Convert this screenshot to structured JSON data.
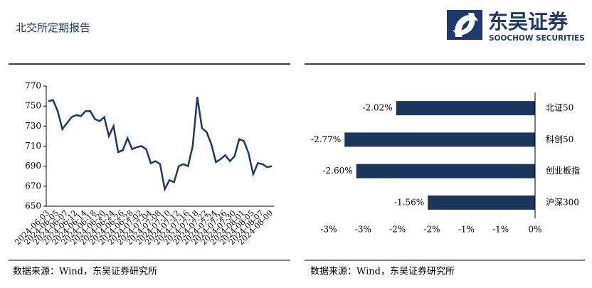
{
  "header": {
    "title": "北交所定期报告",
    "logo_name": "东吴证券",
    "logo_sub": "SOOCHOW SECURITIES"
  },
  "chart_data": [
    {
      "type": "line",
      "color": "#1b3a6b",
      "x": [
        "2024-06-03",
        null,
        "2024-06-05",
        null,
        "2024-06-07",
        null,
        "2024-06-12",
        null,
        "2024-06-14",
        null,
        "2024-06-18",
        null,
        "2024-06-20",
        null,
        "2024-06-24",
        null,
        "2024-06-26",
        null,
        "2024-06-28",
        null,
        "2024-07-02",
        null,
        "2024-07-04",
        null,
        "2024-07-08",
        null,
        "2024-07-10",
        null,
        "2024-07-12",
        null,
        "2024-07-16",
        null,
        "2024-07-18",
        null,
        "2024-07-22",
        null,
        "2024-07-24",
        null,
        "2024-07-26",
        null,
        "2024-07-30",
        null,
        "2024-08-01",
        null,
        "2024-08-05",
        null,
        "2024-08-07",
        null,
        "2024-08-09"
      ],
      "values": [
        755,
        756,
        745,
        727,
        733,
        739,
        741,
        740,
        745,
        745,
        737,
        735,
        739,
        720,
        730,
        704,
        706,
        718,
        707,
        709,
        710,
        707,
        693,
        695,
        692,
        667,
        676,
        674,
        690,
        692,
        690,
        710,
        759,
        728,
        724,
        712,
        694,
        697,
        701,
        695,
        700,
        717,
        715,
        703,
        682,
        693,
        692,
        689,
        690
      ],
      "ylim": [
        650,
        770
      ],
      "yticks": [
        650,
        670,
        690,
        710,
        730,
        750,
        770
      ]
    },
    {
      "type": "bar",
      "orientation": "horizontal",
      "color": "#1b365d",
      "categories": [
        "北证50",
        "科创50",
        "创业板指",
        "沪深300"
      ],
      "values": [
        -2.02,
        -2.77,
        -2.6,
        -1.56
      ],
      "value_labels": [
        "-2.02%",
        "-2.77%",
        "-2.60%",
        "-1.56%"
      ],
      "xlim": [
        -3,
        0
      ],
      "xticks": [
        {
          "value": -3,
          "label": "-3%"
        },
        {
          "value": -2.5,
          "label": "-3%"
        },
        {
          "value": -2,
          "label": "-2%"
        },
        {
          "value": -1.5,
          "label": "-2%"
        },
        {
          "value": -1,
          "label": "-1%"
        },
        {
          "value": -0.5,
          "label": "-1%"
        },
        {
          "value": 0,
          "label": "0%"
        }
      ]
    }
  ],
  "sources": [
    "数据来源：Wind，东吴证券研究所",
    "数据来源：Wind，东吴证券研究所"
  ]
}
